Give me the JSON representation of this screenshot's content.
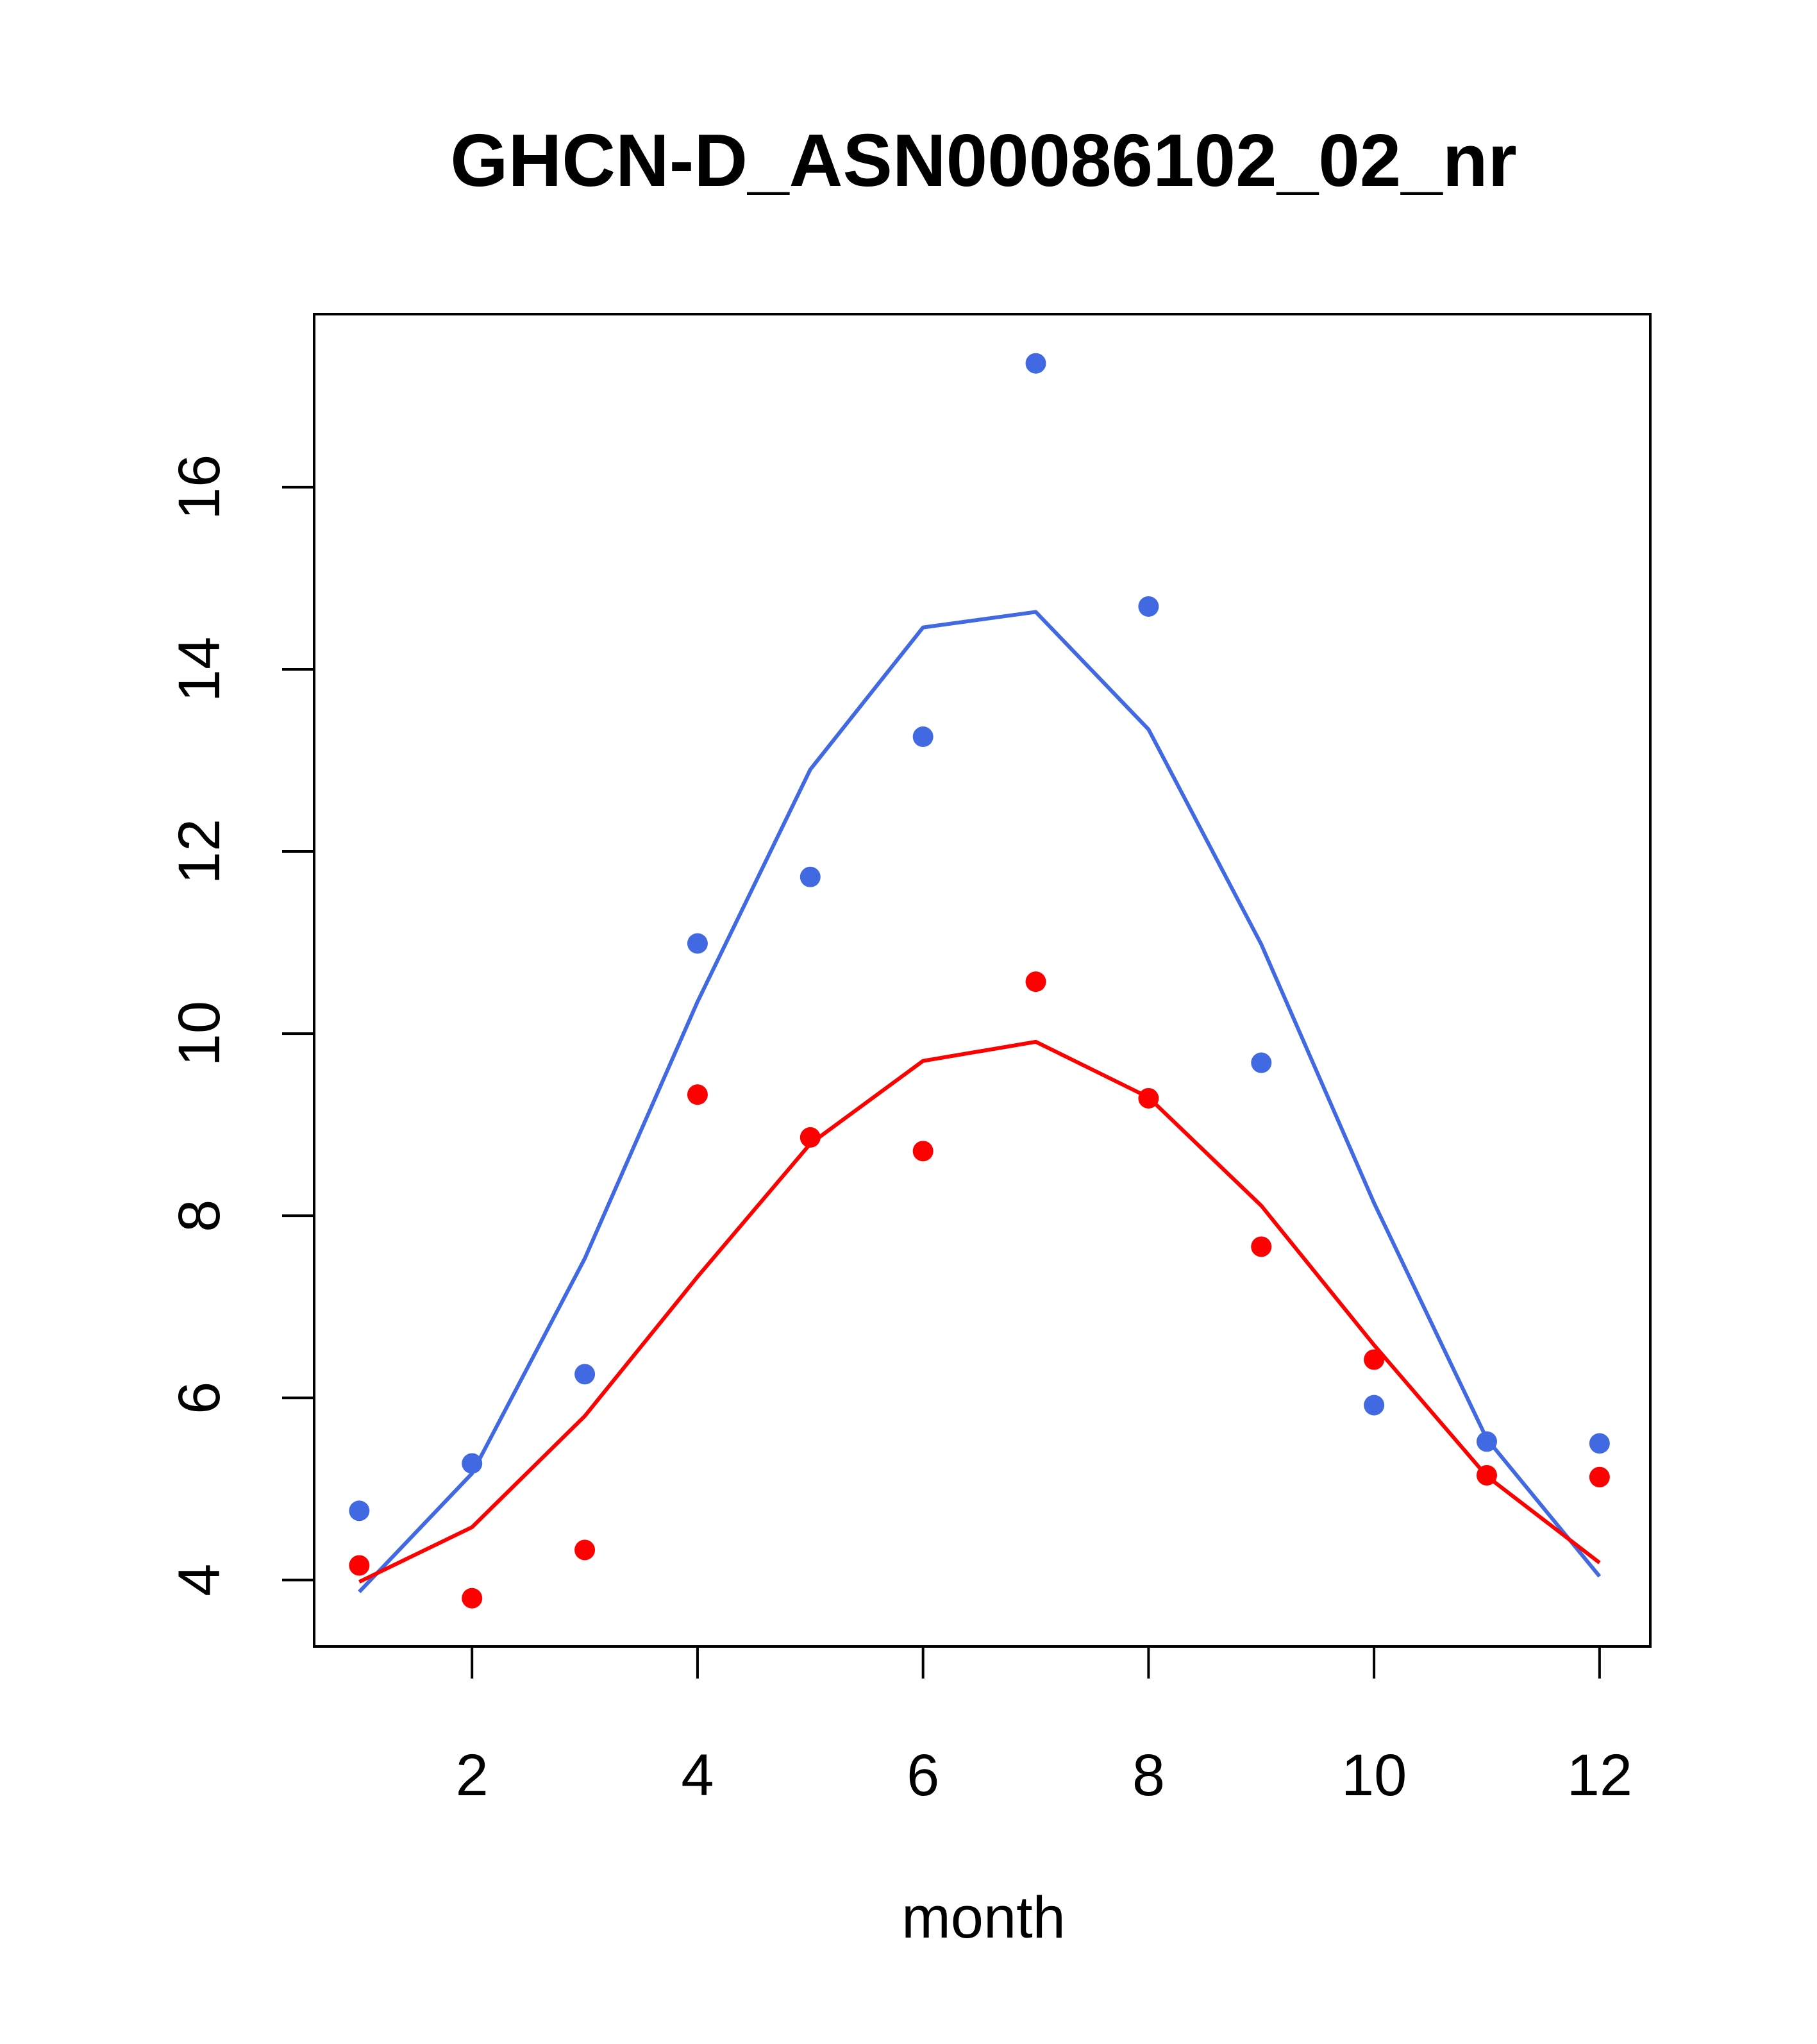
{
  "chart_data": {
    "type": "scatter",
    "title": "GHCN-D_ASN00086102_02_nr",
    "xlabel": "month",
    "ylabel": "",
    "xlim": [
      0.6,
      12.45
    ],
    "ylim": [
      3.27,
      17.9
    ],
    "xticks": [
      2,
      4,
      6,
      8,
      10,
      12
    ],
    "yticks": [
      4,
      6,
      8,
      10,
      12,
      14,
      16
    ],
    "grid": false,
    "x": [
      1,
      2,
      3,
      4,
      5,
      6,
      7,
      8,
      9,
      10,
      11,
      12
    ],
    "series": [
      {
        "kind": "points",
        "color": "#4169E1",
        "values": [
          4.76,
          5.28,
          6.26,
          10.99,
          11.72,
          13.26,
          17.36,
          14.69,
          9.68,
          5.92,
          5.52,
          5.5
        ]
      },
      {
        "kind": "points",
        "color": "#FF0000",
        "values": [
          4.16,
          3.8,
          4.33,
          9.33,
          8.86,
          8.71,
          10.57,
          9.29,
          7.66,
          6.42,
          5.15,
          5.13
        ]
      },
      {
        "kind": "line",
        "color": "#4169E1",
        "values": [
          3.87,
          5.17,
          7.53,
          10.35,
          12.9,
          14.46,
          14.63,
          13.34,
          10.98,
          8.14,
          5.55,
          4.04
        ]
      },
      {
        "kind": "line",
        "color": "#FF0000",
        "values": [
          3.98,
          4.58,
          5.8,
          7.33,
          8.79,
          9.7,
          9.91,
          9.3,
          8.11,
          6.58,
          5.14,
          4.19
        ]
      }
    ]
  }
}
